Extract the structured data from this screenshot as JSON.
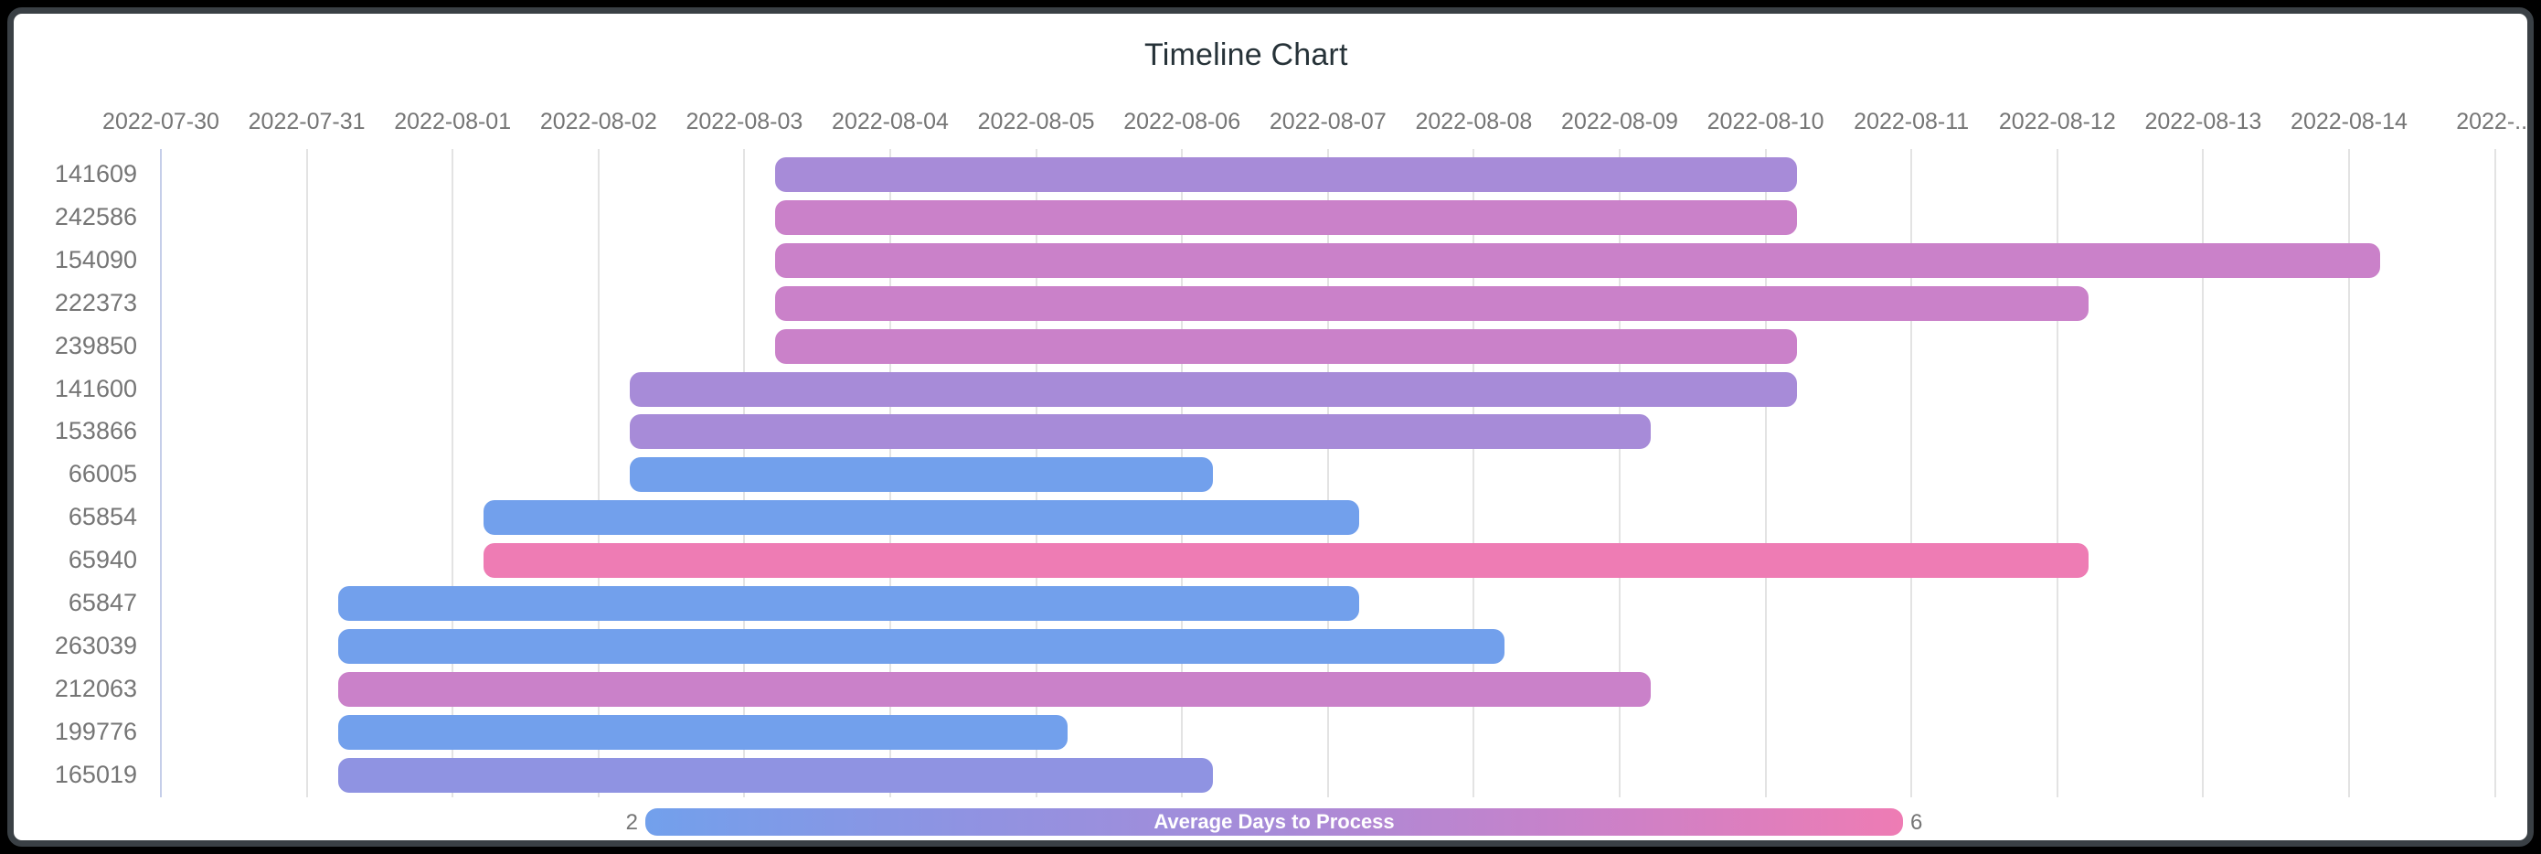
{
  "window": {
    "outer_background": "#000000",
    "card_background": "#ffffff",
    "card_border_color": "#3a4045"
  },
  "chart_data": {
    "type": "bar",
    "subtype": "horizontal-timeline-gantt",
    "title": "Timeline Chart",
    "grid": true,
    "x_axis": {
      "start": "2022-07-30",
      "interval_days": 1,
      "tick_labels": [
        "2022-07-30",
        "2022-07-31",
        "2022-08-01",
        "2022-08-02",
        "2022-08-03",
        "2022-08-04",
        "2022-08-05",
        "2022-08-06",
        "2022-08-07",
        "2022-08-08",
        "2022-08-09",
        "2022-08-10",
        "2022-08-11",
        "2022-08-12",
        "2022-08-13",
        "2022-08-14",
        "2022-..."
      ]
    },
    "rows": [
      {
        "id": "141609",
        "start": "2022-08-03",
        "end": "2022-08-10",
        "color": "#a78bd8",
        "avg_days_to_process": 4
      },
      {
        "id": "242586",
        "start": "2022-08-03",
        "end": "2022-08-10",
        "color": "#ca81c9",
        "avg_days_to_process": 5
      },
      {
        "id": "154090",
        "start": "2022-08-03",
        "end": "2022-08-14",
        "color": "#ca81c9",
        "avg_days_to_process": 5
      },
      {
        "id": "222373",
        "start": "2022-08-03",
        "end": "2022-08-12",
        "color": "#ca81c9",
        "avg_days_to_process": 5
      },
      {
        "id": "239850",
        "start": "2022-08-03",
        "end": "2022-08-10",
        "color": "#ca81c9",
        "avg_days_to_process": 5
      },
      {
        "id": "141600",
        "start": "2022-08-02",
        "end": "2022-08-10",
        "color": "#a78bd8",
        "avg_days_to_process": 4
      },
      {
        "id": "153866",
        "start": "2022-08-02",
        "end": "2022-08-09",
        "color": "#a78bd8",
        "avg_days_to_process": 4
      },
      {
        "id": "66005",
        "start": "2022-08-02",
        "end": "2022-08-06",
        "color": "#72a0ec",
        "avg_days_to_process": 2
      },
      {
        "id": "65854",
        "start": "2022-08-01",
        "end": "2022-08-07",
        "color": "#72a0ec",
        "avg_days_to_process": 2
      },
      {
        "id": "65940",
        "start": "2022-08-01",
        "end": "2022-08-12",
        "color": "#ee7cb4",
        "avg_days_to_process": 6
      },
      {
        "id": "65847",
        "start": "2022-07-31",
        "end": "2022-08-07",
        "color": "#72a0ec",
        "avg_days_to_process": 2
      },
      {
        "id": "263039",
        "start": "2022-07-31",
        "end": "2022-08-08",
        "color": "#72a0ec",
        "avg_days_to_process": 2
      },
      {
        "id": "212063",
        "start": "2022-07-31",
        "end": "2022-08-09",
        "color": "#ca81c9",
        "avg_days_to_process": 5
      },
      {
        "id": "199776",
        "start": "2022-07-31",
        "end": "2022-08-05",
        "color": "#72a0ec",
        "avg_days_to_process": 2
      },
      {
        "id": "165019",
        "start": "2022-07-31",
        "end": "2022-08-06",
        "color": "#8f93e2",
        "avg_days_to_process": 3
      }
    ],
    "legend": {
      "label": "Average Days to Process",
      "min": "2",
      "max": "6",
      "gradient": [
        "#72a0ec",
        "#8f93e2",
        "#a78bd8",
        "#ca81c9",
        "#ee7cb4"
      ],
      "position": "bottom"
    }
  }
}
